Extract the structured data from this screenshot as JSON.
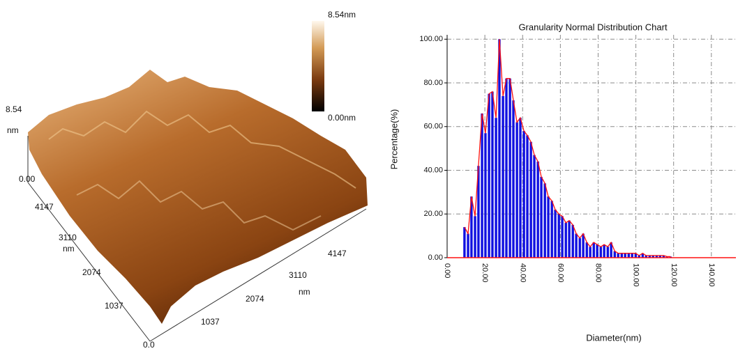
{
  "afm_image": {
    "colorbar_max": "8.54nm",
    "colorbar_min": "0.00nm",
    "z_max": "8.54",
    "z_unit": "nm",
    "z_min": "0.00",
    "y_ticks": [
      "4147",
      "3110",
      "2074",
      "1037",
      "0.0"
    ],
    "y_unit": "nm",
    "x_ticks": [
      "1037",
      "2074",
      "3110",
      "4147"
    ],
    "x_unit": "nm"
  },
  "chart_data": {
    "type": "bar",
    "title": "Granularity Normal Distribution  Chart",
    "x_label": "Diameter(nm)",
    "y_label": "Percentage(%)",
    "x": [
      9.2,
      11.1,
      12.9,
      14.8,
      16.6,
      18.5,
      20.3,
      22.2,
      24.0,
      25.9,
      27.7,
      29.6,
      31.4,
      33.3,
      35.1,
      37.0,
      38.8,
      40.7,
      42.5,
      44.4,
      46.2,
      48.1,
      49.9,
      51.8,
      53.6,
      55.5,
      57.3,
      59.2,
      61.0,
      62.9,
      64.7,
      66.6,
      68.4,
      70.3,
      72.1,
      74.0,
      75.8,
      77.7,
      79.5,
      81.4,
      83.2,
      85.1,
      86.9,
      88.8,
      90.6,
      92.5,
      94.3,
      96.2,
      98.0,
      99.9,
      101.7,
      103.6,
      105.4,
      107.3,
      109.1,
      111.0,
      112.8,
      114.7,
      116.5,
      118.4
    ],
    "values": [
      14,
      11,
      28,
      19,
      42,
      66,
      57,
      75,
      76,
      64,
      100,
      74,
      82,
      82,
      72,
      62,
      64,
      58,
      56,
      53,
      47,
      44,
      37,
      34,
      28,
      26,
      22,
      20,
      19,
      16,
      17,
      15,
      11,
      9,
      11,
      7,
      5,
      7,
      6,
      5,
      6,
      5,
      7,
      3,
      2,
      2,
      2,
      2,
      2,
      2,
      1,
      2,
      1,
      1,
      1,
      1,
      1,
      1,
      0.5,
      0.5
    ],
    "bar_color": "#1010e0",
    "line_color": "#ff1010",
    "xlim": [
      0,
      153
    ],
    "ylim": [
      0,
      102
    ],
    "xticks": [
      {
        "value": 0,
        "label": "0.00"
      },
      {
        "value": 20,
        "label": "20.00"
      },
      {
        "value": 40,
        "label": "40.00"
      },
      {
        "value": 60,
        "label": "60.00"
      },
      {
        "value": 80,
        "label": "80.00"
      },
      {
        "value": 100,
        "label": "100.00"
      },
      {
        "value": 120,
        "label": "120.00"
      },
      {
        "value": 140,
        "label": "140.00"
      }
    ],
    "yticks": [
      {
        "value": 0,
        "label": "0.00"
      },
      {
        "value": 20,
        "label": "20.00"
      },
      {
        "value": 40,
        "label": "40.00"
      },
      {
        "value": 60,
        "label": "60.00"
      },
      {
        "value": 80,
        "label": "80.00"
      },
      {
        "value": 100,
        "label": "100.00"
      }
    ],
    "grid": true
  }
}
